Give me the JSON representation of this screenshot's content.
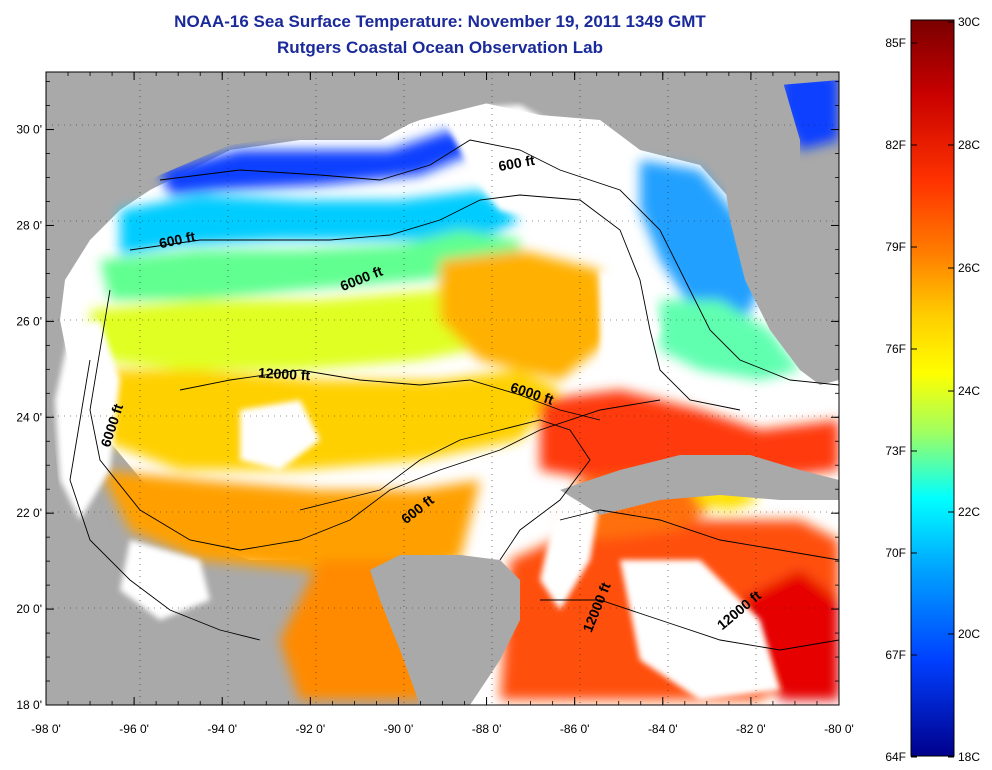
{
  "title": "NOAA-16 Sea Surface Temperature:  November 19, 2011 1349 GMT",
  "subtitle": "Rutgers Coastal Ocean Observation Lab",
  "x_ticks": [
    "-98 0'",
    "-96 0'",
    "-94 0'",
    "-92 0'",
    "-90 0'",
    "-88 0'",
    "-86 0'",
    "-84 0'",
    "-82 0'",
    "-80 0'"
  ],
  "y_ticks": [
    "30 0'",
    "28 0'",
    "26 0'",
    "24 0'",
    "22 0'",
    "20 0'",
    "18 0'"
  ],
  "contour_labels": [
    {
      "text": "600 ft",
      "lon": -87.3,
      "lat": 29.2,
      "rot": -10
    },
    {
      "text": "600 ft",
      "lon": -95.0,
      "lat": 27.6,
      "rot": -12
    },
    {
      "text": "6000 ft",
      "lon": -90.8,
      "lat": 26.8,
      "rot": -22
    },
    {
      "text": "12000 ft",
      "lon": -92.6,
      "lat": 24.8,
      "rot": 3
    },
    {
      "text": "6000 ft",
      "lon": -87.0,
      "lat": 24.4,
      "rot": 18
    },
    {
      "text": "6000 ft",
      "lon": -96.4,
      "lat": 23.8,
      "rot": -72
    },
    {
      "text": "600 ft",
      "lon": -89.5,
      "lat": 22.0,
      "rot": -38
    },
    {
      "text": "12000 ft",
      "lon": -85.4,
      "lat": 20.0,
      "rot": -68
    },
    {
      "text": "12000 ft",
      "lon": -82.2,
      "lat": 19.9,
      "rot": -40
    }
  ],
  "colorbar": {
    "f_labels": [
      "85F",
      "82F",
      "79F",
      "76F",
      "73F",
      "70F",
      "67F",
      "64F"
    ],
    "c_labels": [
      "30C",
      "28C",
      "26C",
      "24C",
      "22C",
      "20C",
      "18C"
    ],
    "stops": [
      "#7a0000",
      "#c80000",
      "#ff3300",
      "#ff8000",
      "#ffcc00",
      "#ffff00",
      "#a0ff60",
      "#00ffff",
      "#00a0ff",
      "#0040ff",
      "#00008c"
    ]
  },
  "colors": {
    "land": "#a9a9a9",
    "title": "#1a2a9a",
    "cloud": "#ffffff"
  },
  "map": {
    "lon_range": [
      -98,
      -80
    ],
    "lat_range": [
      18,
      31.2
    ]
  }
}
